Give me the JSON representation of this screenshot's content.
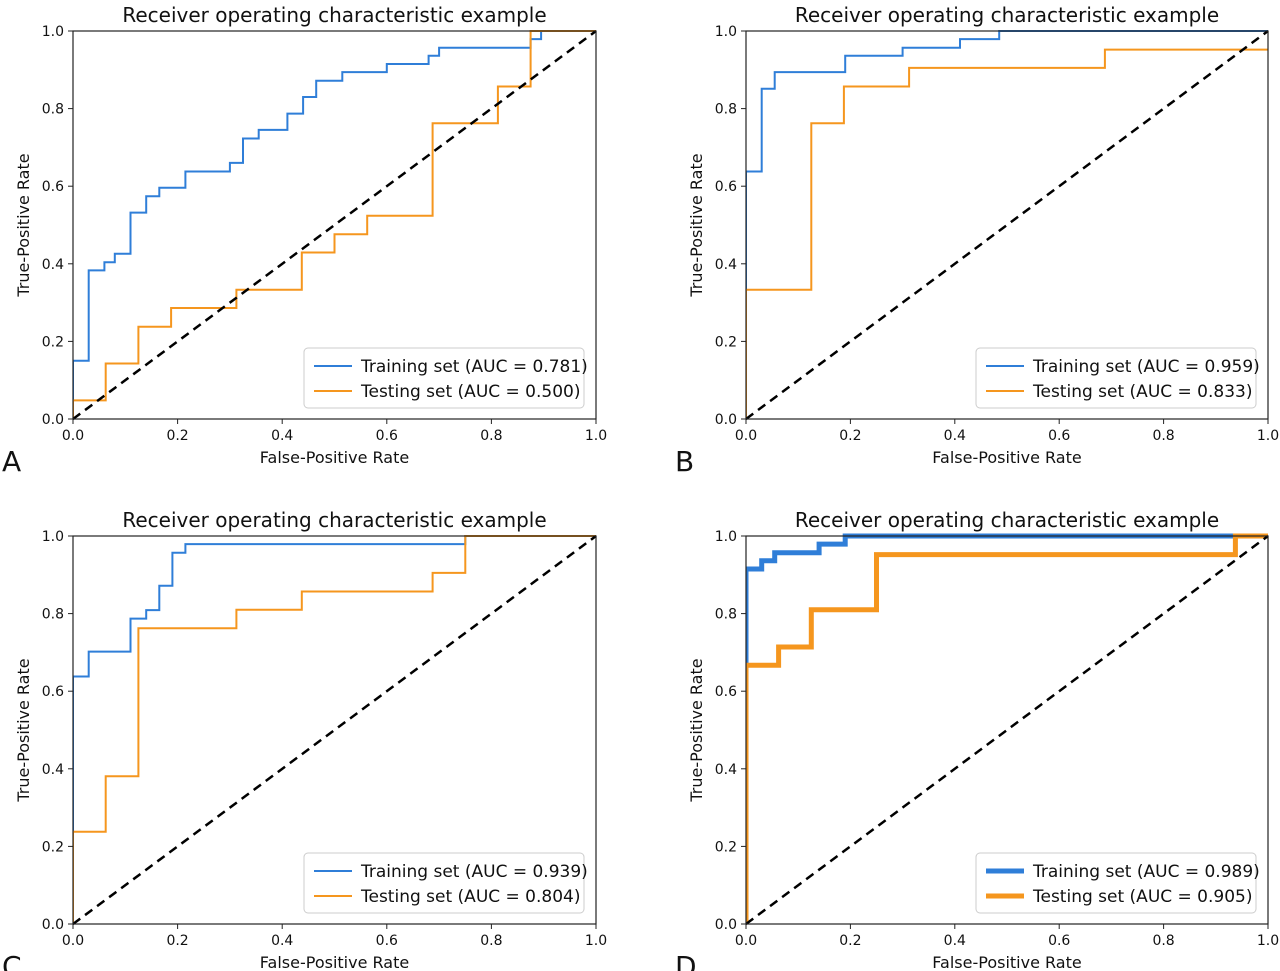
{
  "colors": {
    "training": "#2f7ed8",
    "testing": "#f5961e",
    "chance": "#000000"
  },
  "chart_data": [
    {
      "type": "line",
      "panel": "A",
      "title": "Receiver operating characteristic example",
      "xlabel": "False-Positive Rate",
      "ylabel": "True-Positive Rate",
      "xlim": [
        0,
        1
      ],
      "ylim": [
        0,
        1
      ],
      "xticks": [
        "0.0",
        "0.2",
        "0.4",
        "0.6",
        "0.8",
        "1.0"
      ],
      "yticks": [
        "0.0",
        "0.2",
        "0.4",
        "0.6",
        "0.8",
        "1.0"
      ],
      "legend_position": "lower-right",
      "series": [
        {
          "name": "Training set (AUC = 0.781)",
          "color": "#2f7ed8",
          "width": 2,
          "x": [
            0,
            0,
            0.03,
            0.03,
            0.06,
            0.06,
            0.08,
            0.08,
            0.11,
            0.11,
            0.14,
            0.14,
            0.165,
            0.165,
            0.215,
            0.215,
            0.3,
            0.3,
            0.325,
            0.325,
            0.355,
            0.355,
            0.41,
            0.41,
            0.44,
            0.44,
            0.465,
            0.465,
            0.515,
            0.515,
            0.6,
            0.6,
            0.68,
            0.68,
            0.7,
            0.7,
            0.875,
            0.875,
            0.895,
            0.895,
            1.0
          ],
          "y": [
            0,
            0.15,
            0.15,
            0.383,
            0.383,
            0.404,
            0.404,
            0.426,
            0.426,
            0.532,
            0.532,
            0.574,
            0.574,
            0.596,
            0.596,
            0.638,
            0.638,
            0.66,
            0.66,
            0.723,
            0.723,
            0.745,
            0.745,
            0.787,
            0.787,
            0.83,
            0.83,
            0.872,
            0.872,
            0.894,
            0.894,
            0.915,
            0.915,
            0.936,
            0.936,
            0.957,
            0.957,
            0.979,
            0.979,
            1.0,
            1.0
          ]
        },
        {
          "name": "Testing set (AUC = 0.500)",
          "color": "#f5961e",
          "width": 2,
          "x": [
            0,
            0,
            0.0625,
            0.0625,
            0.125,
            0.125,
            0.1875,
            0.1875,
            0.3125,
            0.3125,
            0.4375,
            0.4375,
            0.5,
            0.5,
            0.5625,
            0.5625,
            0.6875,
            0.6875,
            0.8125,
            0.8125,
            0.875,
            0.875,
            1.0
          ],
          "y": [
            0,
            0.048,
            0.048,
            0.143,
            0.143,
            0.238,
            0.238,
            0.286,
            0.286,
            0.333,
            0.333,
            0.429,
            0.429,
            0.476,
            0.476,
            0.524,
            0.524,
            0.762,
            0.762,
            0.857,
            0.857,
            1.0,
            1.0
          ]
        },
        {
          "name": "",
          "color": "#000000",
          "width": 2.5,
          "dash": "9,6",
          "x": [
            0,
            1
          ],
          "y": [
            0,
            1
          ]
        }
      ]
    },
    {
      "type": "line",
      "panel": "B",
      "title": "Receiver operating characteristic example",
      "xlabel": "False-Positive Rate",
      "ylabel": "True-Positive Rate",
      "xlim": [
        0,
        1
      ],
      "ylim": [
        0,
        1
      ],
      "xticks": [
        "0.0",
        "0.2",
        "0.4",
        "0.6",
        "0.8",
        "1.0"
      ],
      "yticks": [
        "0.0",
        "0.2",
        "0.4",
        "0.6",
        "0.8",
        "1.0"
      ],
      "legend_position": "lower-right",
      "series": [
        {
          "name": "Training set (AUC = 0.959)",
          "color": "#2f7ed8",
          "width": 2,
          "x": [
            0,
            0,
            0.03,
            0.03,
            0.055,
            0.055,
            0.19,
            0.19,
            0.3,
            0.3,
            0.41,
            0.41,
            0.485,
            0.485,
            1.0
          ],
          "y": [
            0,
            0.638,
            0.638,
            0.851,
            0.851,
            0.894,
            0.894,
            0.936,
            0.936,
            0.957,
            0.957,
            0.979,
            0.979,
            1.0,
            1.0
          ]
        },
        {
          "name": "Testing set (AUC = 0.833)",
          "color": "#f5961e",
          "width": 2,
          "x": [
            0,
            0,
            0.125,
            0.125,
            0.1875,
            0.1875,
            0.3125,
            0.3125,
            0.6875,
            0.6875,
            1.0
          ],
          "y": [
            0,
            0.333,
            0.333,
            0.762,
            0.762,
            0.857,
            0.857,
            0.905,
            0.905,
            0.952,
            0.952
          ]
        },
        {
          "name": "",
          "color": "#000000",
          "width": 2.5,
          "dash": "9,6",
          "x": [
            0,
            1
          ],
          "y": [
            0,
            1
          ]
        }
      ]
    },
    {
      "type": "line",
      "panel": "C",
      "title": "Receiver operating characteristic example",
      "xlabel": "False-Positive Rate",
      "ylabel": "True-Positive Rate",
      "xlim": [
        0,
        1
      ],
      "ylim": [
        0,
        1
      ],
      "xticks": [
        "0.0",
        "0.2",
        "0.4",
        "0.6",
        "0.8",
        "1.0"
      ],
      "yticks": [
        "0.0",
        "0.2",
        "0.4",
        "0.6",
        "0.8",
        "1.0"
      ],
      "legend_position": "lower-right",
      "series": [
        {
          "name": "Training set (AUC = 0.939)",
          "color": "#2f7ed8",
          "width": 2,
          "x": [
            0,
            0,
            0.03,
            0.03,
            0.11,
            0.11,
            0.14,
            0.14,
            0.165,
            0.165,
            0.19,
            0.19,
            0.215,
            0.215,
            0.75,
            0.75,
            1.0
          ],
          "y": [
            0,
            0.638,
            0.638,
            0.702,
            0.702,
            0.787,
            0.787,
            0.809,
            0.809,
            0.872,
            0.872,
            0.957,
            0.957,
            0.979,
            0.979,
            1.0,
            1.0
          ]
        },
        {
          "name": "Testing set (AUC = 0.804)",
          "color": "#f5961e",
          "width": 2,
          "x": [
            0,
            0,
            0.0625,
            0.0625,
            0.125,
            0.125,
            0.3125,
            0.3125,
            0.4375,
            0.4375,
            0.6875,
            0.6875,
            0.75,
            0.75,
            1.0
          ],
          "y": [
            0,
            0.238,
            0.238,
            0.381,
            0.381,
            0.762,
            0.762,
            0.81,
            0.81,
            0.857,
            0.857,
            0.905,
            0.905,
            1.0,
            1.0
          ]
        },
        {
          "name": "",
          "color": "#000000",
          "width": 2.5,
          "dash": "9,6",
          "x": [
            0,
            1
          ],
          "y": [
            0,
            1
          ]
        }
      ]
    },
    {
      "type": "line",
      "panel": "D",
      "title": "Receiver operating characteristic example",
      "xlabel": "False-Positive Rate",
      "ylabel": "True-Positive Rate",
      "xlim": [
        0,
        1
      ],
      "ylim": [
        0,
        1
      ],
      "xticks": [
        "0.0",
        "0.2",
        "0.4",
        "0.6",
        "0.8",
        "1.0"
      ],
      "yticks": [
        "0.0",
        "0.2",
        "0.4",
        "0.6",
        "0.8",
        "1.0"
      ],
      "legend_position": "lower-right",
      "series": [
        {
          "name": "Training set (AUC = 0.989)",
          "color": "#2f7ed8",
          "width": 5,
          "x": [
            0,
            0,
            0.03,
            0.03,
            0.055,
            0.055,
            0.14,
            0.14,
            0.19,
            0.19,
            1.0
          ],
          "y": [
            0,
            0.915,
            0.915,
            0.936,
            0.936,
            0.957,
            0.957,
            0.979,
            0.979,
            1.0,
            1.0
          ]
        },
        {
          "name": "Testing set (AUC = 0.905)",
          "color": "#f5961e",
          "width": 5,
          "x": [
            0,
            0,
            0.0625,
            0.0625,
            0.125,
            0.125,
            0.25,
            0.25,
            0.9375,
            0.9375,
            1.0
          ],
          "y": [
            0,
            0.667,
            0.667,
            0.714,
            0.714,
            0.81,
            0.81,
            0.952,
            0.952,
            1.0,
            1.0
          ]
        },
        {
          "name": "",
          "color": "#000000",
          "width": 2.5,
          "dash": "9,6",
          "x": [
            0,
            1
          ],
          "y": [
            0,
            1
          ]
        }
      ]
    }
  ]
}
